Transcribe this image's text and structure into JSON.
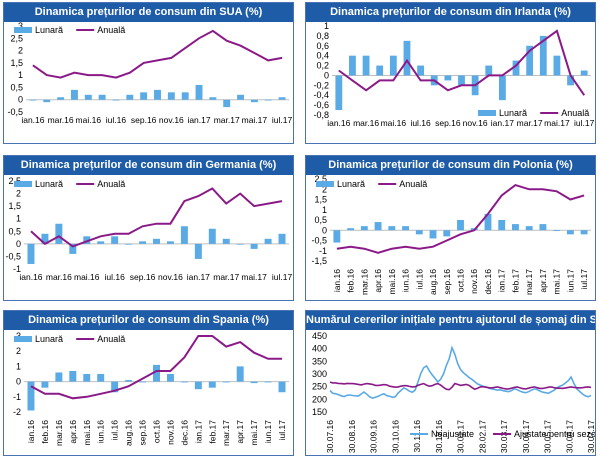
{
  "chart_data": [
    {
      "type": "bar",
      "title": "Dinamica prețurilor de consum din SUA (%)",
      "categories": [
        "ian.16",
        "feb.16",
        "mar.16",
        "apr.16",
        "mai.16",
        "iun.16",
        "iul.16",
        "aug.16",
        "sep.16",
        "oct.16",
        "nov.16",
        "dec.16",
        "ian.17",
        "feb.17",
        "mar.17",
        "apr.17",
        "mai.17",
        "iun.17",
        "iul.17"
      ],
      "x_tick_labels": [
        "ian.16",
        "mar.16",
        "mai.16",
        "iul.16",
        "sep.16",
        "nov.16",
        "ian.17",
        "mar.17",
        "mai.17",
        "iul.17"
      ],
      "ylim": [
        -0.5,
        3
      ],
      "yticks": [
        "-0,5",
        "0",
        "0,5",
        "1",
        "1,5",
        "2",
        "2,5",
        "3"
      ],
      "legend": "top-left",
      "series": [
        {
          "name": "Lunară",
          "kind": "bar",
          "color": "#5aaae6",
          "values": [
            0.0,
            -0.1,
            0.1,
            0.4,
            0.2,
            0.2,
            0.0,
            0.2,
            0.3,
            0.4,
            0.3,
            0.3,
            0.6,
            0.1,
            -0.3,
            0.2,
            -0.1,
            0.0,
            0.1
          ]
        },
        {
          "name": "Anuală",
          "kind": "line",
          "color": "#8b1a89",
          "values": [
            1.4,
            1.0,
            0.9,
            1.1,
            1.0,
            1.0,
            0.9,
            1.1,
            1.5,
            1.6,
            1.7,
            2.1,
            2.5,
            2.8,
            2.4,
            2.2,
            1.9,
            1.6,
            1.7
          ]
        }
      ]
    },
    {
      "type": "bar",
      "title": "Dinamica prețurilor de consum din Irlanda (%)",
      "categories": [
        "ian.16",
        "feb.16",
        "mar.16",
        "apr.16",
        "mai.16",
        "iun.16",
        "iul.16",
        "aug.16",
        "sep.16",
        "oct.16",
        "nov.16",
        "dec.16",
        "ian.17",
        "feb.17",
        "mar.17",
        "apr.17",
        "mai.17",
        "iun.17",
        "iul.17"
      ],
      "x_tick_labels": [
        "ian.16",
        "mar.16",
        "mai.16",
        "iul.16",
        "sep.16",
        "nov.16",
        "ian.17",
        "mar.17",
        "mai.17",
        "iul.17"
      ],
      "ylim": [
        -0.8,
        1.0
      ],
      "yticks": [
        "-0,8",
        "-0,6",
        "-0,4",
        "-0,2",
        "0",
        "0,2",
        "0,4",
        "0,6",
        "0,8",
        "1"
      ],
      "legend": "bottom-right",
      "series": [
        {
          "name": "Lunară",
          "kind": "bar",
          "color": "#5aaae6",
          "values": [
            -0.7,
            0.4,
            0.4,
            0.2,
            0.4,
            0.7,
            0.2,
            -0.2,
            -0.1,
            -0.2,
            -0.4,
            0.2,
            -0.5,
            0.3,
            0.6,
            0.8,
            0.4,
            -0.2,
            0.1
          ]
        },
        {
          "name": "Anuală",
          "kind": "line",
          "color": "#8b1a89",
          "values": [
            0.1,
            -0.1,
            -0.3,
            -0.1,
            -0.1,
            0.3,
            -0.1,
            -0.1,
            -0.3,
            -0.2,
            -0.2,
            0.0,
            0.0,
            0.2,
            0.5,
            0.7,
            0.9,
            0.0,
            -0.4
          ]
        }
      ]
    },
    {
      "type": "bar",
      "title": "Dinamica prețurilor de consum din Germania (%)",
      "categories": [
        "ian.16",
        "feb.16",
        "mar.16",
        "apr.16",
        "mai.16",
        "iun.16",
        "iul.16",
        "aug.16",
        "sep.16",
        "oct.16",
        "nov.16",
        "dec.16",
        "ian.17",
        "feb.17",
        "mar.17",
        "apr.17",
        "mai.17",
        "iun.17",
        "iul.17"
      ],
      "x_tick_labels": [
        "ian.16",
        "mar.16",
        "mai.16",
        "iul.16",
        "sep.16",
        "nov.16",
        "ian.17",
        "mar.17",
        "mai.17",
        "iul.17"
      ],
      "ylim": [
        -1,
        2.5
      ],
      "yticks": [
        "-1",
        "-0,5",
        "0",
        "0,5",
        "1",
        "1,5",
        "2",
        "2,5"
      ],
      "legend": "top-left",
      "series": [
        {
          "name": "Lunară",
          "kind": "bar",
          "color": "#5aaae6",
          "values": [
            -0.8,
            0.4,
            0.8,
            -0.4,
            0.3,
            0.1,
            0.3,
            0.0,
            0.1,
            0.2,
            0.1,
            0.7,
            -0.6,
            0.6,
            0.2,
            0.0,
            -0.2,
            0.2,
            0.4
          ]
        },
        {
          "name": "Anuală",
          "kind": "line",
          "color": "#8b1a89",
          "values": [
            0.5,
            0.0,
            0.3,
            -0.1,
            0.1,
            0.3,
            0.4,
            0.4,
            0.7,
            0.8,
            0.8,
            1.7,
            1.9,
            2.2,
            1.6,
            2.0,
            1.5,
            1.6,
            1.7
          ]
        }
      ]
    },
    {
      "type": "bar",
      "title": "Dinamica prețurilor de consum din Polonia (%)",
      "categories": [
        "ian.16",
        "feb.16",
        "mar.16",
        "apr.16",
        "mai.16",
        "iun.16",
        "iul.16",
        "aug.16",
        "sep.16",
        "oct.16",
        "nov.16",
        "dec.16",
        "ian.17",
        "feb.17",
        "mar.17",
        "apr.17",
        "mai.17",
        "iun.17",
        "iul.17"
      ],
      "x_tick_labels": [
        "ian.16",
        "feb.16",
        "mar.16",
        "apr.16",
        "mai.16",
        "iun.16",
        "iul.16",
        "aug.16",
        "sep.16",
        "oct.16",
        "nov.16",
        "dec.16",
        "ian.17",
        "feb.17",
        "mar.17",
        "apr.17",
        "mai.17",
        "iun.17",
        "iul.17"
      ],
      "ylim": [
        -1.5,
        2.5
      ],
      "yticks": [
        "-1,5",
        "-1",
        "-0,5",
        "0",
        "0,5",
        "1",
        "1,5",
        "2",
        "2,5"
      ],
      "legend": "top-left",
      "series": [
        {
          "name": "Lunară",
          "kind": "bar",
          "color": "#5aaae6",
          "values": [
            -0.6,
            0.1,
            0.2,
            0.4,
            0.2,
            0.2,
            -0.2,
            -0.4,
            -0.3,
            0.5,
            0.1,
            0.8,
            0.5,
            0.3,
            0.2,
            0.3,
            0.0,
            -0.2,
            -0.2
          ]
        },
        {
          "name": "Anuală",
          "kind": "line",
          "color": "#8b1a89",
          "values": [
            -0.9,
            -0.8,
            -0.9,
            -1.1,
            -0.9,
            -0.8,
            -0.9,
            -0.8,
            -0.5,
            -0.2,
            0.0,
            0.8,
            1.7,
            2.2,
            2.0,
            2.0,
            1.9,
            1.5,
            1.7
          ]
        }
      ]
    },
    {
      "type": "bar",
      "title": "Dinamica prețurilor de consum din Spania (%)",
      "categories": [
        "ian.16",
        "feb.16",
        "mar.16",
        "apr.16",
        "mai.16",
        "iun.16",
        "iul.16",
        "aug.16",
        "sep.16",
        "oct.16",
        "nov.16",
        "dec.16",
        "ian.17",
        "feb.17",
        "mar.17",
        "apr.17",
        "mai.17",
        "iun.17",
        "iul.17"
      ],
      "x_tick_labels": [
        "ian.16",
        "feb.16",
        "mar.16",
        "apr.16",
        "mai.16",
        "iun.16",
        "iul.16",
        "aug.16",
        "sep.16",
        "oct.16",
        "nov.16",
        "dec.16",
        "ian.17",
        "feb.17",
        "mar.17",
        "apr.17",
        "mai.17",
        "iun.17",
        "iul.17"
      ],
      "ylim": [
        -2,
        3
      ],
      "yticks": [
        "-2",
        "-1",
        "0",
        "1",
        "2",
        "3"
      ],
      "legend": "top-left",
      "series": [
        {
          "name": "Lunară",
          "kind": "bar",
          "color": "#5aaae6",
          "values": [
            -1.9,
            -0.4,
            0.6,
            0.7,
            0.5,
            0.5,
            -0.7,
            0.1,
            0.0,
            1.1,
            0.5,
            0.0,
            -0.5,
            -0.4,
            0.0,
            1.0,
            -0.1,
            0.0,
            -0.7
          ]
        },
        {
          "name": "Anuală",
          "kind": "line",
          "color": "#8b1a89",
          "values": [
            -0.3,
            -0.8,
            -0.8,
            -1.1,
            -1.0,
            -0.8,
            -0.6,
            -0.3,
            0.2,
            0.7,
            0.7,
            1.6,
            3.0,
            3.0,
            2.3,
            2.6,
            1.9,
            1.5,
            1.5
          ]
        }
      ]
    },
    {
      "type": "line",
      "title": "Numărul cererilor inițiale pentru ajutorul de șomaj din SUA (mii)",
      "x_tick_labels": [
        "30.07.16",
        "30.08.16",
        "30.09.16",
        "30.10.16",
        "30.11.16",
        "30.12.16",
        "30.01.17",
        "28.02.17",
        "30.03.17",
        "30.04.17",
        "30.05.17",
        "30.06.17",
        "30.07.17"
      ],
      "ylim": [
        150,
        450
      ],
      "yticks": [
        "150",
        "200",
        "250",
        "300",
        "350",
        "400",
        "450"
      ],
      "legend": "bottom",
      "series": [
        {
          "name": "Neajustate",
          "kind": "line",
          "color": "#5aaae6",
          "values": [
            235,
            224,
            222,
            218,
            214,
            211,
            216,
            217,
            215,
            214,
            213,
            221,
            229,
            220,
            210,
            205,
            208,
            212,
            218,
            222,
            215,
            212,
            208,
            210,
            225,
            235,
            245,
            240,
            232,
            228,
            236,
            268,
            302,
            324,
            332,
            313,
            297,
            283,
            269,
            279,
            300,
            333,
            360,
            404,
            378,
            341,
            318,
            305,
            296,
            286,
            279,
            270,
            261,
            256,
            251,
            249,
            244,
            241,
            239,
            236,
            238,
            234,
            232,
            230,
            235,
            242,
            238,
            232,
            228,
            226,
            230,
            236,
            241,
            239,
            233,
            228,
            226,
            224,
            230,
            236,
            246,
            252,
            256,
            265,
            274,
            288,
            262,
            242,
            231,
            221,
            214,
            210,
            215
          ]
        },
        {
          "name": "Ajustate pentru sezonalitate",
          "kind": "line",
          "color": "#8b1a89",
          "values": [
            268,
            265,
            265,
            263,
            262,
            261,
            263,
            262,
            262,
            261,
            259,
            257,
            260,
            262,
            261,
            259,
            255,
            255,
            256,
            258,
            257,
            252,
            250,
            248,
            249,
            252,
            254,
            254,
            251,
            249,
            250,
            255,
            259,
            262,
            256,
            252,
            254,
            259,
            262,
            256,
            247,
            240,
            238,
            248,
            262,
            259,
            255,
            257,
            259,
            255,
            247,
            240,
            244,
            249,
            250,
            248,
            246,
            245,
            247,
            249,
            246,
            243,
            241,
            241,
            244,
            247,
            249,
            245,
            242,
            241,
            244,
            247,
            249,
            246,
            243,
            243,
            245,
            248,
            249,
            246,
            244,
            244,
            243,
            245,
            247,
            249,
            247,
            246,
            245,
            246,
            248,
            249,
            247
          ]
        }
      ]
    }
  ]
}
